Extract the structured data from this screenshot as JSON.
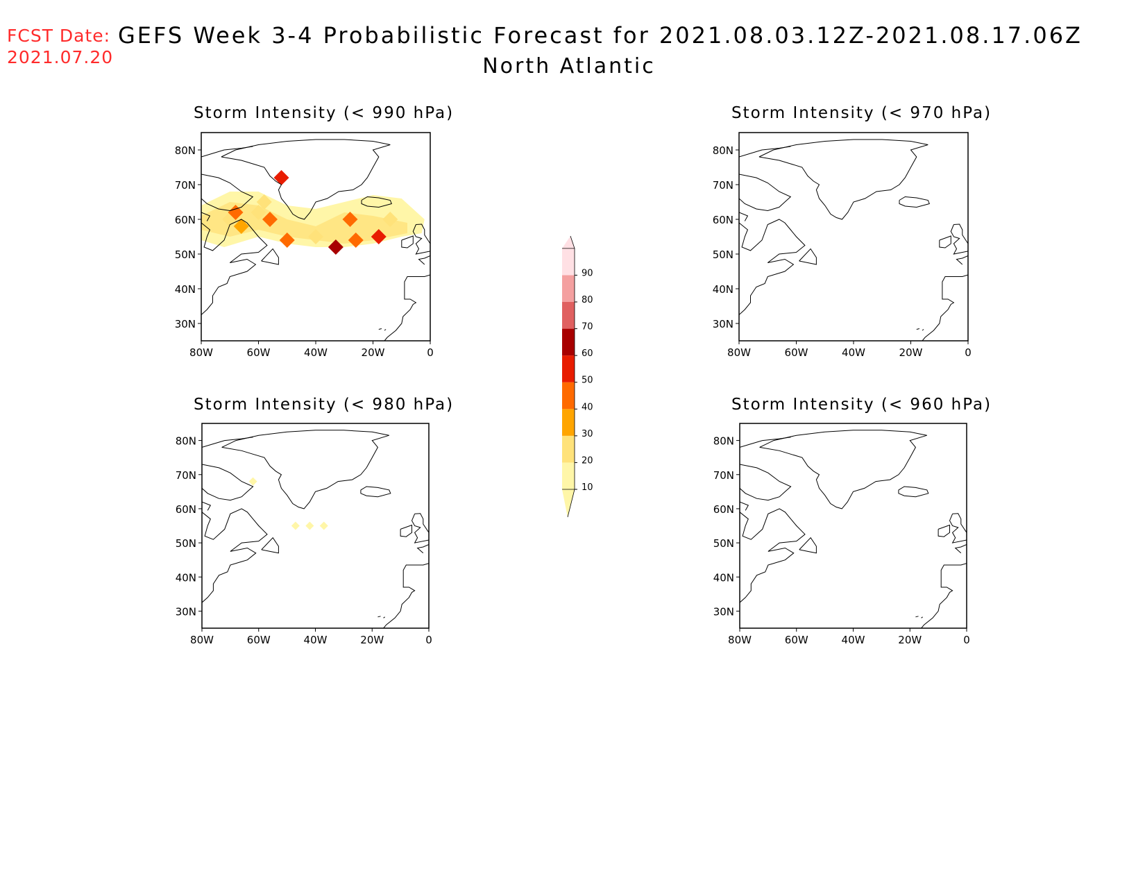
{
  "header": {
    "fcst_label": "FCST Date:",
    "fcst_date": "2021.07.20",
    "title": "GEFS Week 3-4 Probabilistic Forecast for 2021.08.03.12Z-2021.08.17.06Z",
    "region": "North Atlantic"
  },
  "colors": {
    "fcst_text": "#ff2a2a",
    "coast": "#000000"
  },
  "axes": {
    "lon_ticks": [
      "80W",
      "60W",
      "40W",
      "20W",
      "0"
    ],
    "lat_ticks": [
      "80N",
      "70N",
      "60N",
      "50N",
      "40N",
      "30N"
    ],
    "lon_range": [
      -80,
      0
    ],
    "lat_range": [
      25,
      85
    ]
  },
  "panels": [
    {
      "id": "p990",
      "title": "Storm Intensity (< 990 hPa)"
    },
    {
      "id": "p970",
      "title": "Storm Intensity (< 970 hPa)"
    },
    {
      "id": "p980",
      "title": "Storm Intensity (< 980 hPa)"
    },
    {
      "id": "p960",
      "title": "Storm Intensity (< 960 hPa)"
    }
  ],
  "colorbar": {
    "levels": [
      "10",
      "20",
      "30",
      "40",
      "50",
      "60",
      "70",
      "80",
      "90"
    ],
    "colors": [
      "#fff6a8",
      "#ffe27a",
      "#ffa500",
      "#ff6a00",
      "#e81c00",
      "#a80000",
      "#e06060",
      "#f4a0a0",
      "#ffe0e4",
      "#ffeaea"
    ]
  },
  "probability_data": {
    "units": "percent",
    "p990": [
      {
        "lon": -70,
        "lat": 60,
        "prob": 20
      },
      {
        "lon": -68,
        "lat": 62,
        "prob": 40
      },
      {
        "lon": -66,
        "lat": 58,
        "prob": 30
      },
      {
        "lon": -60,
        "lat": 62,
        "prob": 20
      },
      {
        "lon": -56,
        "lat": 60,
        "prob": 40
      },
      {
        "lon": -50,
        "lat": 54,
        "prob": 40
      },
      {
        "lon": -40,
        "lat": 55,
        "prob": 20
      },
      {
        "lon": -33,
        "lat": 52,
        "prob": 60
      },
      {
        "lon": -28,
        "lat": 60,
        "prob": 40
      },
      {
        "lon": -26,
        "lat": 54,
        "prob": 40
      },
      {
        "lon": -18,
        "lat": 55,
        "prob": 50
      },
      {
        "lon": -14,
        "lat": 60,
        "prob": 20
      },
      {
        "lon": -52,
        "lat": 72,
        "prob": 50
      },
      {
        "lon": -58,
        "lat": 65,
        "prob": 20
      }
    ],
    "p980": [
      {
        "lon": -47,
        "lat": 55,
        "prob": 10
      },
      {
        "lon": -42,
        "lat": 55,
        "prob": 10
      },
      {
        "lon": -37,
        "lat": 55,
        "prob": 10
      },
      {
        "lon": -62,
        "lat": 68,
        "prob": 10
      }
    ],
    "p970": [],
    "p960": []
  }
}
